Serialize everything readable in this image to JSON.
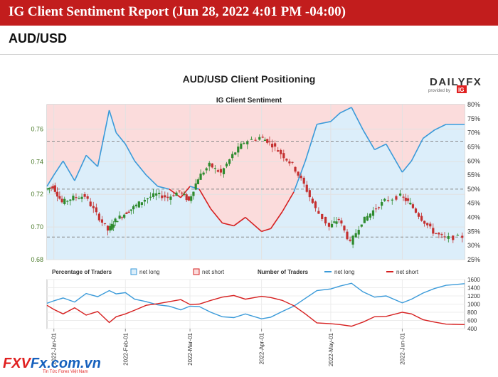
{
  "header": {
    "title": "IG Client Sentiment Report (Jun 28, 2022 4:01 PM -04:00)"
  },
  "pair_heading": "AUD/USD",
  "brand": {
    "name": "DAILYFX",
    "provided_by": "provided by",
    "ig": "IG"
  },
  "footer_logo": {
    "prefix": "FXV",
    "main": "Fx.com.vn",
    "tagline": "Tin Tức Forex Việt Nam"
  },
  "colors": {
    "header_red": "#c21d1d",
    "net_long": "#3a9ad9",
    "net_short": "#d62020",
    "long_fill": "#dceefa",
    "short_fill": "#fbdcdc",
    "candle_green": "#2e8b2e",
    "candle_red": "#c43030"
  },
  "chart_data": [
    {
      "type": "line",
      "title": "AUD/USD Client Positioning",
      "subtitle": "IG Client Sentiment",
      "x_ticks": [
        "2022-Jan-01",
        "2022-Feb-01",
        "2022-Mar-01",
        "2022-Apr-01",
        "2022-May-01",
        "2022-Jun-01"
      ],
      "x": [
        "2021-12-29",
        "2022-01-01",
        "2022-01-05",
        "2022-01-10",
        "2022-01-15",
        "2022-01-20",
        "2022-01-25",
        "2022-01-28",
        "2022-02-01",
        "2022-02-05",
        "2022-02-10",
        "2022-02-15",
        "2022-02-20",
        "2022-02-25",
        "2022-03-01",
        "2022-03-05",
        "2022-03-10",
        "2022-03-15",
        "2022-03-20",
        "2022-03-25",
        "2022-04-01",
        "2022-04-05",
        "2022-04-10",
        "2022-04-15",
        "2022-04-20",
        "2022-04-25",
        "2022-05-01",
        "2022-05-05",
        "2022-05-10",
        "2022-05-15",
        "2022-05-20",
        "2022-05-25",
        "2022-06-01",
        "2022-06-05",
        "2022-06-10",
        "2022-06-15",
        "2022-06-20",
        "2022-06-28"
      ],
      "price_axis": {
        "ticks": [
          0.68,
          0.7,
          0.72,
          0.74,
          0.76
        ],
        "ylim": [
          0.68,
          0.775
        ]
      },
      "pct_axis": {
        "ticks": [
          "25%",
          "30%",
          "35%",
          "40%",
          "45%",
          "50%",
          "55%",
          "60%",
          "65%",
          "70%",
          "75%",
          "80%"
        ],
        "ylim": [
          25,
          80
        ]
      },
      "series": [
        {
          "values": [
            51,
            55,
            60,
            53,
            62,
            58,
            78,
            70,
            66,
            60,
            55,
            51,
            50,
            47,
            51,
            50,
            43,
            38,
            37,
            40,
            35,
            36,
            42,
            49,
            60,
            73,
            74,
            77,
            79,
            71,
            64,
            66,
            56,
            60,
            68,
            71,
            73,
            73
          ]
        }
      ],
      "price_values": [
        0.723,
        0.725,
        0.715,
        0.718,
        0.719,
        0.708,
        0.698,
        0.704,
        0.708,
        0.712,
        0.717,
        0.72,
        0.718,
        0.722,
        0.716,
        0.73,
        0.738,
        0.733,
        0.744,
        0.752,
        0.755,
        0.752,
        0.745,
        0.738,
        0.726,
        0.711,
        0.7,
        0.705,
        0.69,
        0.703,
        0.71,
        0.716,
        0.719,
        0.714,
        0.705,
        0.697,
        0.693,
        0.694
      ],
      "reference_lines_pct": [
        50,
        33,
        67
      ]
    },
    {
      "type": "line",
      "x_ticks": [
        "2022-Jan-01",
        "2022-Feb-01",
        "2022-Mar-01",
        "2022-Apr-01",
        "2022-May-01",
        "2022-Jun-01"
      ],
      "legend_left": {
        "title": "Percentage of Traders",
        "items": [
          "net long",
          "net short"
        ]
      },
      "legend_right": {
        "title": "Number of Traders",
        "items": [
          "net long",
          "net short"
        ]
      },
      "y_ticks": [
        400,
        600,
        800,
        1000,
        1200,
        1400,
        1600
      ],
      "ylim": [
        400,
        1600
      ],
      "series": [
        {
          "name": "net long",
          "values": [
            1020,
            1080,
            1150,
            1050,
            1260,
            1180,
            1330,
            1250,
            1280,
            1120,
            1060,
            980,
            950,
            860,
            950,
            940,
            800,
            690,
            670,
            760,
            640,
            680,
            820,
            950,
            1140,
            1330,
            1370,
            1440,
            1510,
            1300,
            1170,
            1200,
            1030,
            1120,
            1270,
            1380,
            1460,
            1500
          ]
        },
        {
          "name": "net short",
          "values": [
            970,
            870,
            760,
            910,
            730,
            820,
            550,
            690,
            760,
            850,
            970,
            1010,
            1060,
            1110,
            990,
            1000,
            1090,
            1170,
            1210,
            1120,
            1190,
            1160,
            1090,
            960,
            760,
            540,
            520,
            500,
            460,
            560,
            690,
            700,
            800,
            760,
            620,
            560,
            510,
            500
          ]
        }
      ]
    }
  ]
}
